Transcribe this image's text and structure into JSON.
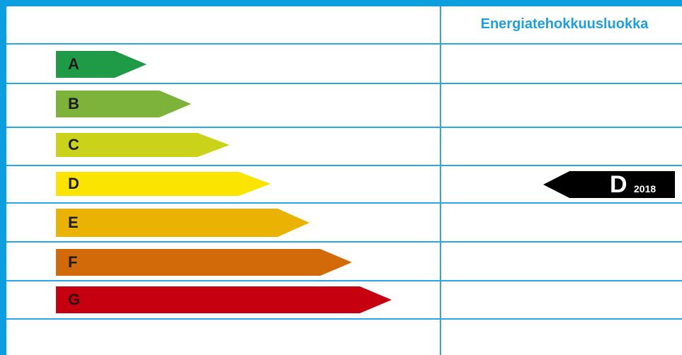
{
  "header": {
    "title": "Energiatehokkuusluokka"
  },
  "classes": [
    {
      "letter": "A",
      "color": "#1f9a46"
    },
    {
      "letter": "B",
      "color": "#7db33a"
    },
    {
      "letter": "C",
      "color": "#cad319"
    },
    {
      "letter": "D",
      "color": "#fbe500"
    },
    {
      "letter": "E",
      "color": "#eab303"
    },
    {
      "letter": "F",
      "color": "#d36a09"
    },
    {
      "letter": "G",
      "color": "#c70010"
    }
  ],
  "current": {
    "class": "D",
    "year": "2018"
  },
  "colors": {
    "border": "#0b9fe0",
    "grid": "#2aa8e4",
    "header_text": "#1d9fe0"
  }
}
